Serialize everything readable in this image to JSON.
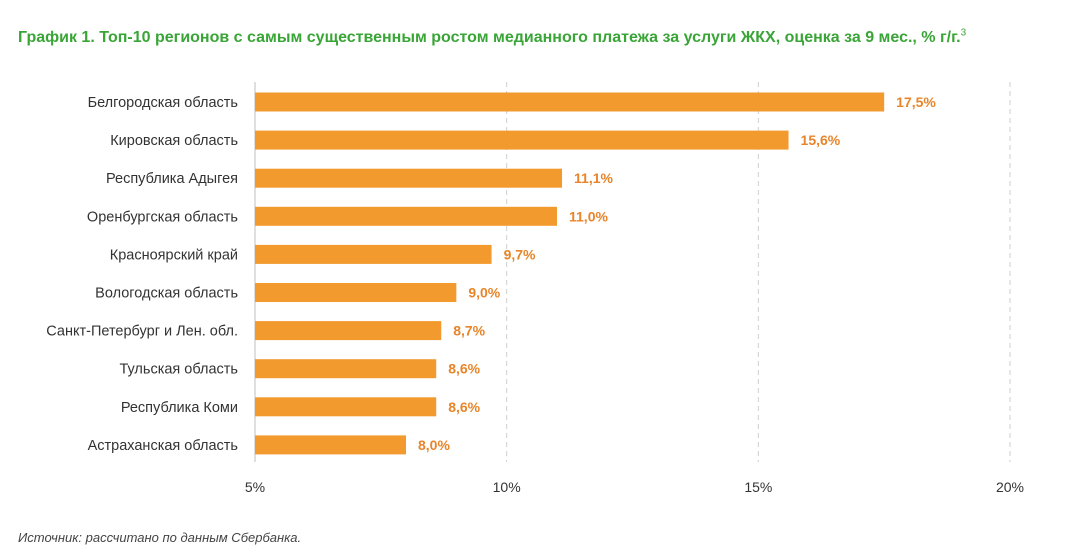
{
  "title": "График 1. Топ-10 регионов с самым существенным ростом медианного платежа за услуги ЖКХ, оценка за 9 мес., % г/г.",
  "title_footnote": "3",
  "source": "Источник: рассчитано по данным Сбербанка.",
  "colors": {
    "bar": "#f29a2e",
    "data_label": "#e8852a",
    "title": "#3aa537",
    "grid": "#cfcfcf"
  },
  "chart_data": {
    "type": "bar",
    "orientation": "horizontal",
    "categories": [
      "Белгородская область",
      "Кировская область",
      "Республика Адыгея",
      "Оренбургская область",
      "Красноярский край",
      "Вологодская область",
      "Санкт-Петербург и Лен. обл.",
      "Тульская область",
      "Республика Коми",
      "Астраханская область"
    ],
    "values": [
      17.5,
      15.6,
      11.1,
      11.0,
      9.7,
      9.0,
      8.7,
      8.6,
      8.6,
      8.0
    ],
    "data_labels": [
      "17,5%",
      "15,6%",
      "11,1%",
      "11,0%",
      "9,7%",
      "9,0%",
      "8,7%",
      "8,6%",
      "8,6%",
      "8,0%"
    ],
    "xlim": [
      5,
      20
    ],
    "xticks": [
      5,
      10,
      15,
      20
    ],
    "xtick_labels": [
      "5%",
      "10%",
      "15%",
      "20%"
    ],
    "xlabel": "",
    "ylabel": "",
    "grid": "vertical dashed",
    "legend": "none"
  }
}
